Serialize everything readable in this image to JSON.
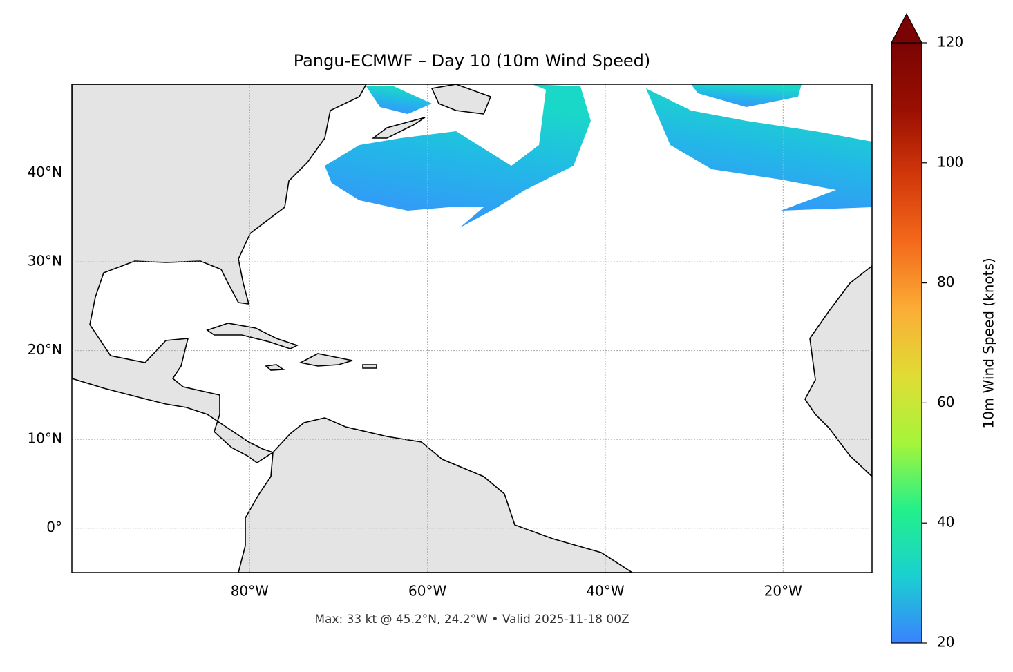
{
  "chart_data": {
    "type": "map",
    "title": "Pangu-ECMWF – Day 10 (10m Wind Speed)",
    "footer": "Max: 33 kt @ 45.2°N, 24.2°W • Valid 2025-11-18 00Z",
    "xlim": [
      -100,
      -10
    ],
    "xticks": [
      {
        "value": -80,
        "label": "80°W"
      },
      {
        "value": -60,
        "label": "60°W"
      },
      {
        "value": -40,
        "label": "40°W"
      },
      {
        "value": -20,
        "label": "20°W"
      }
    ],
    "ylim": [
      -5,
      50
    ],
    "yticks": [
      {
        "value": 0,
        "label": "0°"
      },
      {
        "value": 10,
        "label": "10°N"
      },
      {
        "value": 20,
        "label": "20°N"
      },
      {
        "value": 30,
        "label": "30°N"
      },
      {
        "value": 40,
        "label": "40°N"
      }
    ],
    "grid": true,
    "colorbar": {
      "label": "10m Wind Speed (knots)",
      "lim": [
        20,
        120
      ],
      "ticks": [
        20,
        40,
        60,
        80,
        100,
        120
      ],
      "colors": [
        "#3b82ff",
        "#1ad0d0",
        "#23f08a",
        "#a5f53a",
        "#e0dc34",
        "#fbad36",
        "#f46a1c",
        "#d2380a",
        "#9a0f02",
        "#7a0403"
      ]
    }
  }
}
